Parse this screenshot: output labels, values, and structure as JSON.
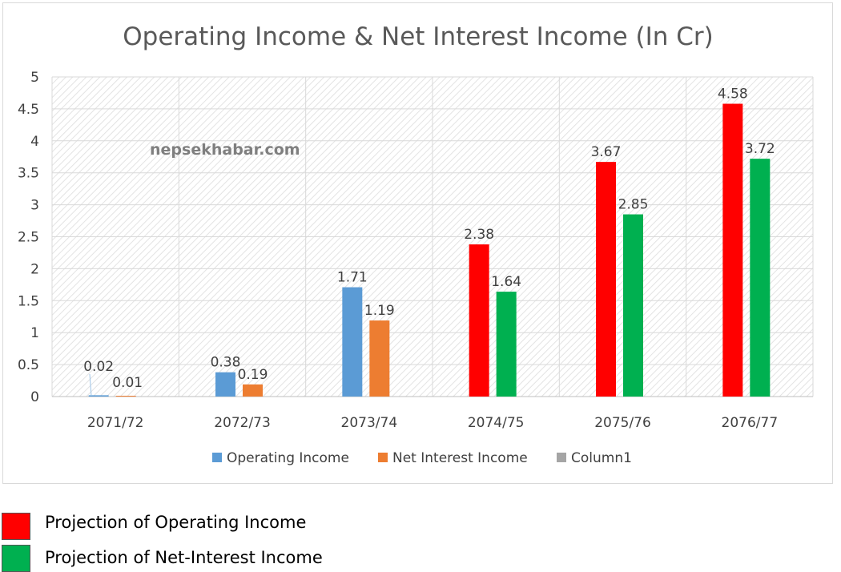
{
  "chart_data": {
    "type": "bar",
    "title": "Operating Income & Net Interest Income (In Cr)",
    "watermark": "nepsekhabar.com",
    "categories": [
      "2071/72",
      "2072/73",
      "2073/74",
      "2074/75",
      "2075/76",
      "2076/77"
    ],
    "series": [
      {
        "name": "Operating Income",
        "values": [
          0.02,
          0.38,
          1.71,
          2.38,
          3.67,
          4.58
        ],
        "colors": [
          "#5b9bd5",
          "#5b9bd5",
          "#5b9bd5",
          "#ff0000",
          "#ff0000",
          "#ff0000"
        ],
        "labels": [
          "0.02",
          "0.38",
          "1.71",
          "2.38",
          "3.67",
          "4.58"
        ]
      },
      {
        "name": "Net Interest Income",
        "values": [
          0.01,
          0.19,
          1.19,
          1.64,
          2.85,
          3.72
        ],
        "colors": [
          "#ed7d31",
          "#ed7d31",
          "#ed7d31",
          "#00b050",
          "#00b050",
          "#00b050"
        ],
        "labels": [
          "0.01",
          "0.19",
          "1.19",
          "1.64",
          "2.85",
          "3.72"
        ]
      },
      {
        "name": "Column1",
        "values": [
          0,
          0,
          0,
          0,
          0,
          0
        ],
        "colors": [
          "#a5a5a5",
          "#a5a5a5",
          "#a5a5a5",
          "#a5a5a5",
          "#a5a5a5",
          "#a5a5a5"
        ],
        "labels": [
          "",
          "",
          "",
          "",
          "",
          ""
        ]
      }
    ],
    "legend_colors": [
      "#5b9bd5",
      "#ed7d31",
      "#a5a5a5"
    ],
    "ylim": [
      0,
      5
    ],
    "yticks": [
      "0",
      "0.5",
      "1",
      "1.5",
      "2",
      "2.5",
      "3",
      "3.5",
      "4",
      "4.5",
      "5"
    ],
    "grid": true,
    "legend_position": "bottom"
  },
  "custom_legend": [
    {
      "label": "Projection of Operating Income",
      "color": "#ff0000"
    },
    {
      "label": "Projection of Net-Interest Income",
      "color": "#00b050"
    }
  ]
}
